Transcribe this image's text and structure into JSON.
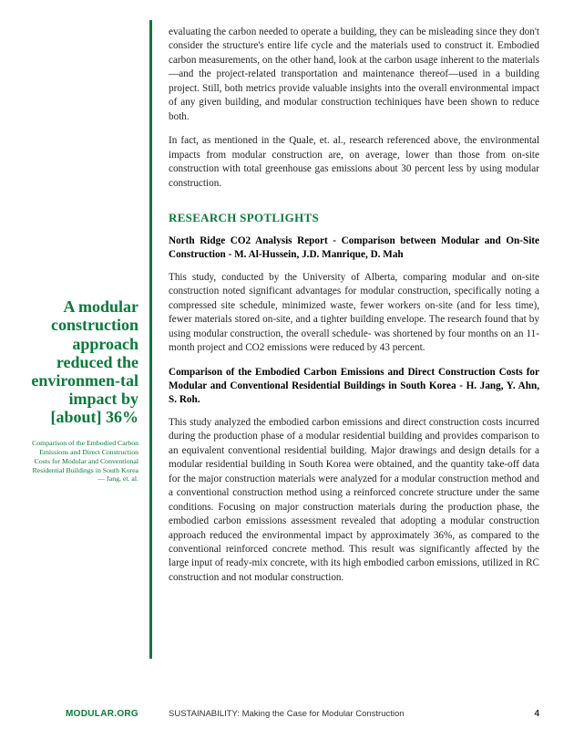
{
  "colors": {
    "accent": "#0a7a3a",
    "body_text": "#222222",
    "background": "#ffffff"
  },
  "typography": {
    "body_font": "Georgia, serif",
    "body_size_pt": 8.5,
    "pullquote_size_pt": 14,
    "heading_size_pt": 10
  },
  "sidebar": {
    "pullquote": "A modular construction approach reduced the environmen-tal impact by [about] 36%",
    "citation": "Comparison of the Embodied Carbon Emissions and Direct Construction Costs for Modular and Conventional Residential Buildings in South Korea — Jang, et. al."
  },
  "body": {
    "p1": "evaluating the carbon needed to operate a building, they can be misleading since they don't consider the structure's entire life cycle and the materials used to construct it. Embodied carbon measurements, on the other hand, look at the carbon usage inherent to the materials—and the project-related transportation and maintenance thereof—used in a building project. Still, both metrics provide valuable insights into the overall environmental impact of any given building, and modular construction techiniques have been shown to reduce both.",
    "p2": "In fact, as mentioned in the Quale, et. al., research referenced above, the environmental impacts from modular construction are, on average, lower than those from on-site construction with total greenhouse gas emissions about 30 percent less by using modular construction.",
    "section_heading": "RESEARCH SPOTLIGHTS",
    "study1_title": "North Ridge CO2 Analysis Report - Comparison between Modular and On-Site Construction - M. Al-Hussein, J.D. Manrique, D. Mah",
    "study1_body": "This study, conducted by the University of Alberta, comparing modular and on-site construction noted significant advantages for modular construction, specifically noting a compressed site schedule, minimized waste, fewer workers on-site (and for less time), fewer materials stored on-site, and a tighter building envelope. The research found that by using modular construction, the overall schedule- was shortened by four months on an 11-month project and CO2 emissions were reduced by 43 percent.",
    "study2_title": "Comparison of the Embodied Carbon Emissions and Direct Construction Costs for Modular and Conventional Residential Buildings in South Korea - H. Jang, Y. Ahn, S. Roh.",
    "study2_body": "This study analyzed the embodied carbon emissions and direct construction costs incurred during the production phase of a modular residential building and provides comparison to an equivalent conventional residential building. Major drawings and design details for a modular residential building in South Korea were obtained, and the quantity take-off data for the major construction materials were analyzed for a modular construction method and a conventional construction method using a reinforced concrete structure under the same conditions. Focusing on major construction materials during the production phase, the embodied carbon emissions assessment revealed that adopting a modular construction approach reduced the environmental impact by approximately 36%, as compared to the conventional reinforced concrete method. This result was significantly affected by the large input of ready-mix concrete, with its high embodied carbon emissions, utilized in RC construction and not modular construction."
  },
  "footer": {
    "left": "MODULAR.ORG",
    "mid": "SUSTAINABILITY: Making the Case for Modular Construction",
    "page": "4"
  }
}
